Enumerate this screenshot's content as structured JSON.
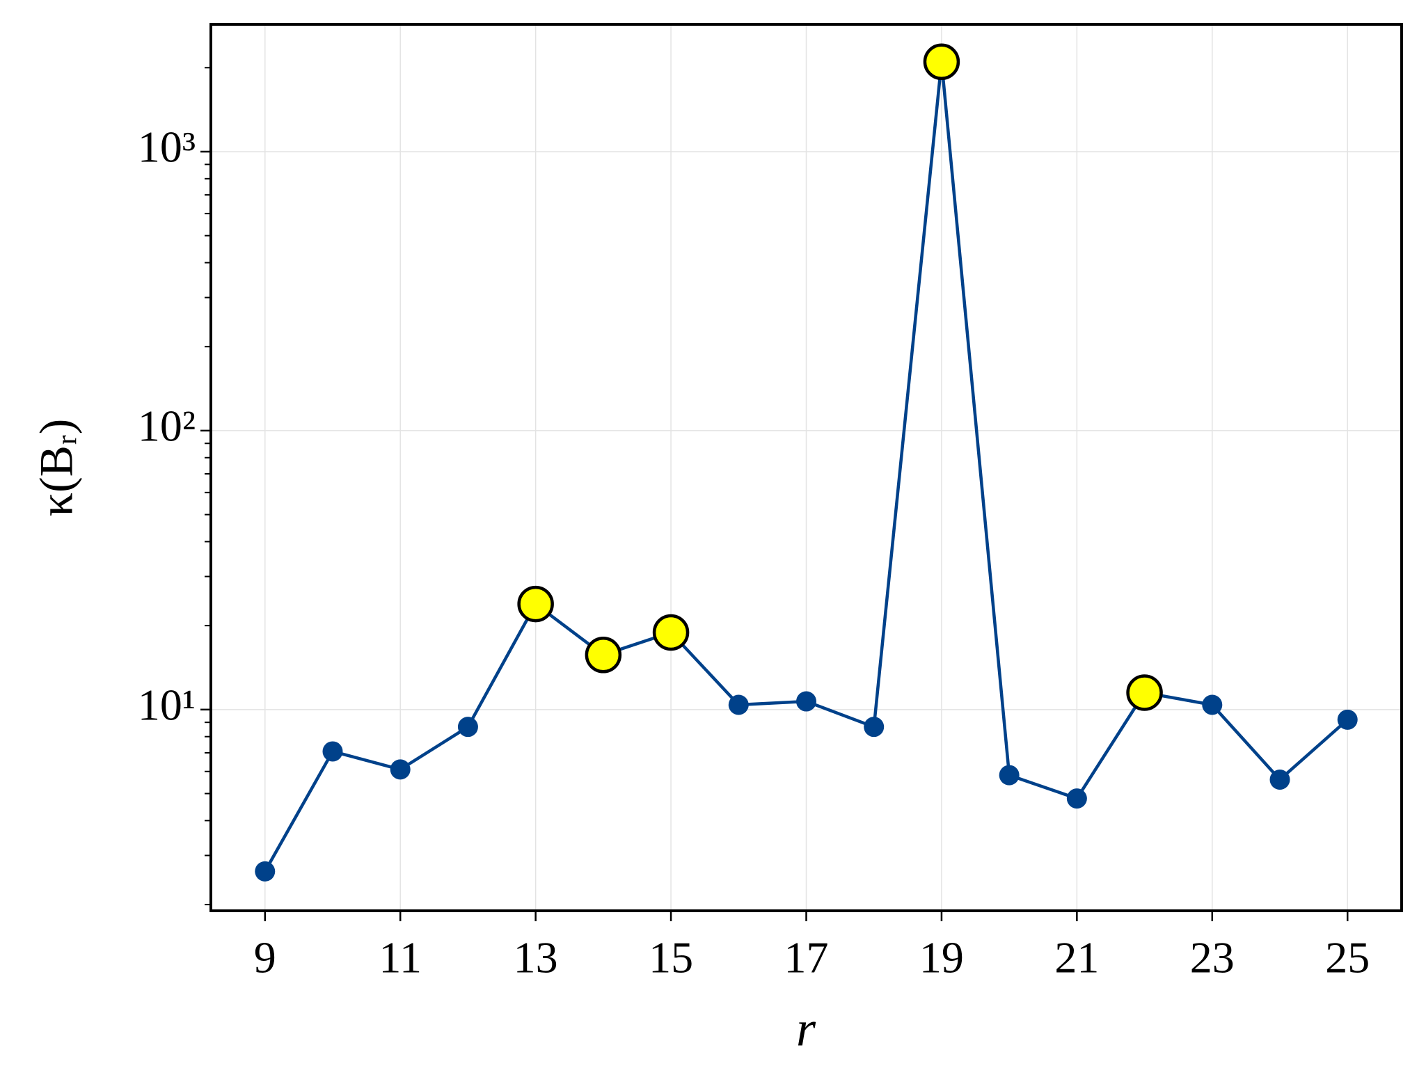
{
  "chart_data": {
    "type": "line",
    "x_label": "r",
    "y_label": "κ(Bᵣ)",
    "x": [
      9,
      10,
      11,
      12,
      13,
      14,
      15,
      16,
      17,
      18,
      19,
      20,
      21,
      22,
      23,
      24,
      25
    ],
    "series": [
      {
        "color": "#00418a",
        "markers_only": false,
        "values": [
          2.63,
          7.08,
          6.1,
          8.67,
          23.9,
          15.7,
          18.9,
          10.4,
          10.7,
          8.67,
          2100,
          5.82,
          4.8,
          11.5,
          10.4,
          5.61,
          9.2
        ]
      },
      {
        "color": "#ffff00",
        "markers_only": true,
        "values": [
          null,
          null,
          null,
          null,
          23.9,
          15.7,
          18.9,
          null,
          null,
          null,
          2100,
          null,
          null,
          11.5,
          null,
          null,
          null
        ]
      }
    ],
    "log_y": true,
    "xlim": [
      8.2,
      25.8
    ],
    "ylim": [
      1.9,
      2860
    ],
    "xticks": [
      9,
      11,
      13,
      15,
      17,
      19,
      21,
      23,
      25
    ],
    "yticks": [
      {
        "value": 10,
        "label": "10¹"
      },
      {
        "value": 100,
        "label": "10²"
      },
      {
        "value": 1000,
        "label": "10³"
      }
    ],
    "grid": true
  }
}
